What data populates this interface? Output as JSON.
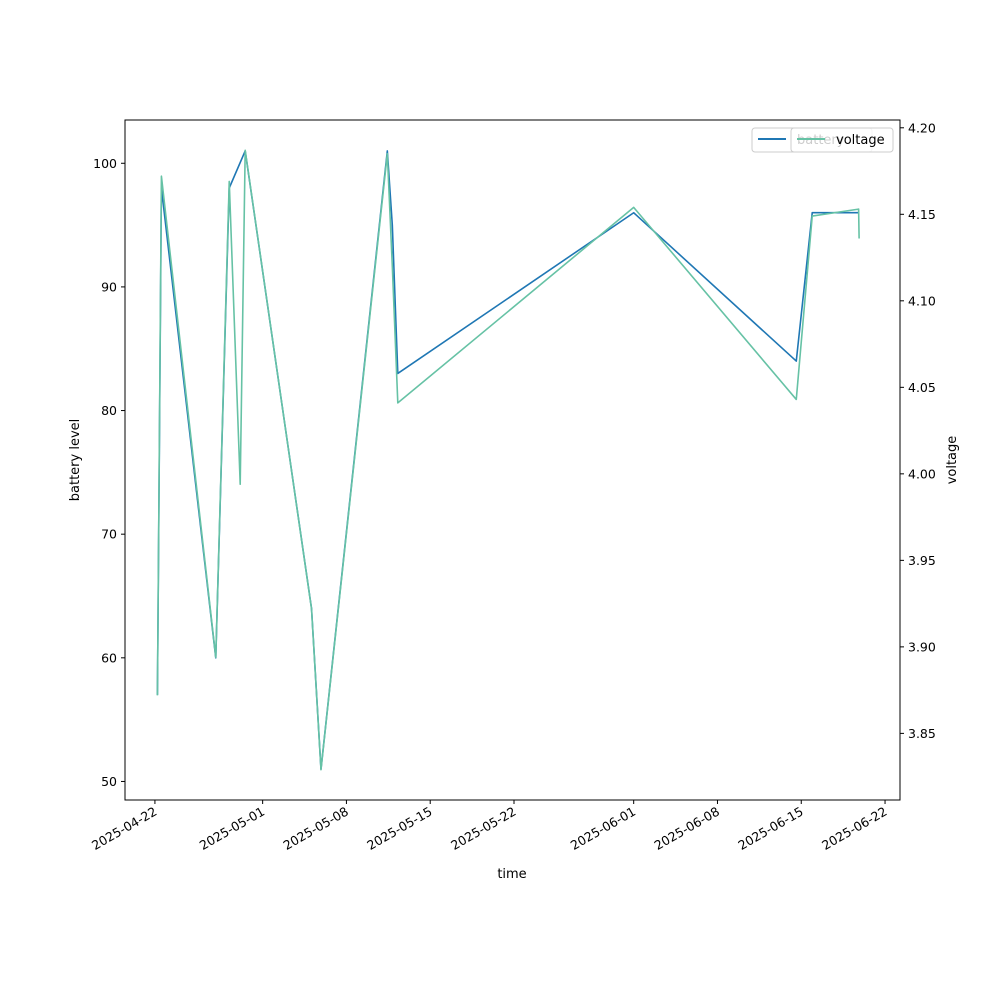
{
  "chart_data": {
    "type": "line",
    "xlabel": "time",
    "ylabel_left": "battery level",
    "ylabel_right": "voltage",
    "x_range": [
      "2025-04-19T12:00",
      "2025-06-23T06:00"
    ],
    "y_left_range": [
      48.5,
      103.5
    ],
    "y_right_range": [
      3.8115,
      4.2045
    ],
    "x_ticks": [
      "2025-04-22",
      "2025-05-01",
      "2025-05-08",
      "2025-05-15",
      "2025-05-22",
      "2025-06-01",
      "2025-06-08",
      "2025-06-15",
      "2025-06-22"
    ],
    "y_left_ticks": [
      50,
      60,
      70,
      80,
      90,
      100
    ],
    "y_right_ticks": [
      "3.85",
      "3.90",
      "3.95",
      "4.00",
      "4.05",
      "4.10",
      "4.15",
      "4.20"
    ],
    "legend": {
      "placement": "top-right",
      "entries": [
        "battery",
        "voltage"
      ]
    },
    "grid": false,
    "series": [
      {
        "name": "battery",
        "axis": "left",
        "color": "#1f77b4",
        "points": [
          [
            "2025-04-22T05:00",
            57
          ],
          [
            "2025-04-22T13:00",
            98
          ],
          [
            "2025-04-27T02:00",
            60
          ],
          [
            "2025-04-28T05:00",
            98
          ],
          [
            "2025-04-29T13:00",
            101
          ],
          [
            "2025-05-05T02:00",
            64
          ],
          [
            "2025-05-05T21:00",
            51
          ],
          [
            "2025-05-11T10:00",
            101
          ],
          [
            "2025-05-11T20:00",
            95
          ],
          [
            "2025-05-12T07:00",
            83
          ],
          [
            "2025-06-01T00:00",
            96
          ],
          [
            "2025-06-14T14:00",
            84
          ],
          [
            "2025-06-15T22:00",
            96
          ],
          [
            "2025-06-19T19:00",
            96
          ]
        ]
      },
      {
        "name": "voltage",
        "axis": "right",
        "color": "#66c2a5",
        "points": [
          [
            "2025-04-22T05:00",
            3.872
          ],
          [
            "2025-04-22T13:00",
            4.172
          ],
          [
            "2025-04-27T02:00",
            3.894
          ],
          [
            "2025-04-28T05:00",
            4.169
          ],
          [
            "2025-04-29T03:00",
            3.994
          ],
          [
            "2025-04-29T13:00",
            4.187
          ],
          [
            "2025-05-05T02:00",
            3.922
          ],
          [
            "2025-05-05T21:00",
            3.829
          ],
          [
            "2025-05-11T10:00",
            4.185
          ],
          [
            "2025-05-11T20:00",
            4.12
          ],
          [
            "2025-05-12T07:00",
            4.041
          ],
          [
            "2025-06-01T00:00",
            4.154
          ],
          [
            "2025-06-14T14:00",
            4.043
          ],
          [
            "2025-06-15T22:00",
            4.149
          ],
          [
            "2025-06-19T19:00",
            4.153
          ],
          [
            "2025-06-19T20:00",
            4.136
          ]
        ]
      }
    ]
  }
}
